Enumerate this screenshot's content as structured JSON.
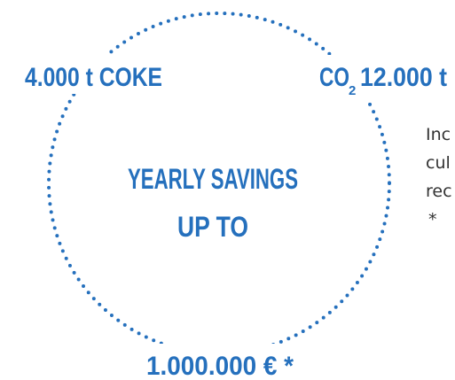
{
  "graphic": {
    "labels": {
      "coke": "4.000 t COKE",
      "co2_prefix": "CO",
      "co2_subscript": "2",
      "co2_amount": "12.000 t",
      "center_line1": "YEARLY SAVINGS",
      "center_line2": "UP TO",
      "money": "1.000.000 € *"
    }
  },
  "side_text": {
    "lines": [
      "Inc",
      "cul",
      "rec"
    ],
    "footnote": "*"
  }
}
